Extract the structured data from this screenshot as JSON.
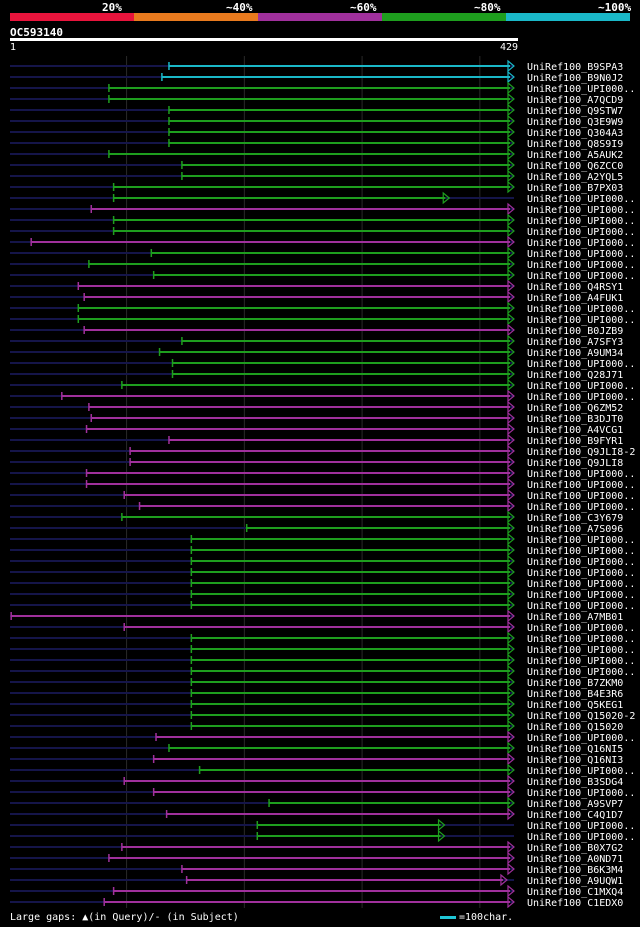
{
  "legend": {
    "labels": [
      "20%",
      "~40%",
      "~60%",
      "~80%",
      "~100%"
    ],
    "colors": [
      "#e8143c",
      "#e87a1e",
      "#a0309c",
      "#1e9e1e",
      "#1ab8c8"
    ]
  },
  "query": {
    "id": "OC593140",
    "start_label": "1",
    "end_label": "429"
  },
  "chart_data": {
    "type": "alignment",
    "query_length": 429,
    "x_range": [
      1,
      429
    ],
    "grid": true,
    "colors": {
      "~100%": "#1ab8c8",
      "~80%": "#1e9e1e",
      "~60%": "#a0309c",
      "unaligned": "#15154a"
    },
    "hits": [
      {
        "label": "UniRef100_B9SPA3",
        "start": 136,
        "end": 429,
        "identity": "~100%",
        "arrow": true
      },
      {
        "label": "UniRef100_B9N0J2",
        "start": 130,
        "end": 429,
        "identity": "~100%",
        "arrow": true
      },
      {
        "label": "UniRef100_UPI000..",
        "start": 85,
        "end": 429,
        "identity": "~80%",
        "arrow": true
      },
      {
        "label": "UniRef100_A7QCD9",
        "start": 85,
        "end": 429,
        "identity": "~80%",
        "arrow": true
      },
      {
        "label": "UniRef100_Q9STW7",
        "start": 136,
        "end": 429,
        "identity": "~80%",
        "arrow": true
      },
      {
        "label": "UniRef100_Q3E9W9",
        "start": 136,
        "end": 429,
        "identity": "~80%",
        "arrow": true
      },
      {
        "label": "UniRef100_Q304A3",
        "start": 136,
        "end": 429,
        "identity": "~80%",
        "arrow": true
      },
      {
        "label": "UniRef100_Q8S9I9",
        "start": 136,
        "end": 429,
        "identity": "~80%",
        "arrow": true
      },
      {
        "label": "UniRef100_A5AUK2",
        "start": 85,
        "end": 429,
        "identity": "~80%",
        "arrow": true
      },
      {
        "label": "UniRef100_Q6ZCC0",
        "start": 147,
        "end": 429,
        "identity": "~80%",
        "arrow": true
      },
      {
        "label": "UniRef100_A2YQL5",
        "start": 147,
        "end": 429,
        "identity": "~80%",
        "arrow": true
      },
      {
        "label": "UniRef100_B7PX03",
        "start": 89,
        "end": 429,
        "identity": "~80%",
        "arrow": true
      },
      {
        "label": "UniRef100_UPI000..",
        "start": 89,
        "end": 374,
        "identity": "~80%",
        "arrow": true
      },
      {
        "label": "UniRef100_UPI000..",
        "start": 70,
        "end": 429,
        "identity": "~60%",
        "arrow": true
      },
      {
        "label": "UniRef100_UPI000..",
        "start": 89,
        "end": 429,
        "identity": "~80%",
        "arrow": true
      },
      {
        "label": "UniRef100_UPI000..",
        "start": 89,
        "end": 429,
        "identity": "~80%",
        "arrow": true
      },
      {
        "label": "UniRef100_UPI000..",
        "start": 19,
        "end": 429,
        "identity": "~60%",
        "arrow": true
      },
      {
        "label": "UniRef100_UPI000..",
        "start": 121,
        "end": 429,
        "identity": "~80%",
        "arrow": true
      },
      {
        "label": "UniRef100_UPI000..",
        "start": 68,
        "end": 429,
        "identity": "~80%",
        "arrow": true
      },
      {
        "label": "UniRef100_UPI000..",
        "start": 123,
        "end": 429,
        "identity": "~80%",
        "arrow": true
      },
      {
        "label": "UniRef100_Q4RSY1",
        "start": 59,
        "end": 429,
        "identity": "~60%",
        "arrow": true
      },
      {
        "label": "UniRef100_A4FUK1",
        "start": 64,
        "end": 429,
        "identity": "~60%",
        "arrow": true
      },
      {
        "label": "UniRef100_UPI000..",
        "start": 59,
        "end": 429,
        "identity": "~80%",
        "arrow": true
      },
      {
        "label": "UniRef100_UPI000..",
        "start": 59,
        "end": 429,
        "identity": "~80%",
        "arrow": true
      },
      {
        "label": "UniRef100_B0JZB9",
        "start": 64,
        "end": 429,
        "identity": "~60%",
        "arrow": true
      },
      {
        "label": "UniRef100_A7SFY3",
        "start": 147,
        "end": 429,
        "identity": "~80%",
        "arrow": true
      },
      {
        "label": "UniRef100_A9UM34",
        "start": 128,
        "end": 429,
        "identity": "~80%",
        "arrow": true
      },
      {
        "label": "UniRef100_UPI000..",
        "start": 139,
        "end": 429,
        "identity": "~80%",
        "arrow": true
      },
      {
        "label": "UniRef100_Q28J71",
        "start": 139,
        "end": 429,
        "identity": "~80%",
        "arrow": true
      },
      {
        "label": "UniRef100_UPI000..",
        "start": 96,
        "end": 429,
        "identity": "~80%",
        "arrow": true
      },
      {
        "label": "UniRef100_UPI000..",
        "start": 45,
        "end": 429,
        "identity": "~60%",
        "arrow": true
      },
      {
        "label": "UniRef100_Q6ZM52",
        "start": 68,
        "end": 429,
        "identity": "~60%",
        "arrow": true
      },
      {
        "label": "UniRef100_B3DJT0",
        "start": 70,
        "end": 429,
        "identity": "~60%",
        "arrow": true
      },
      {
        "label": "UniRef100_A4VCG1",
        "start": 66,
        "end": 429,
        "identity": "~60%",
        "arrow": true
      },
      {
        "label": "UniRef100_B9FYR1",
        "start": 136,
        "end": 429,
        "identity": "~60%",
        "arrow": true
      },
      {
        "label": "UniRef100_Q9JLI8-2",
        "start": 103,
        "end": 429,
        "identity": "~60%",
        "arrow": true
      },
      {
        "label": "UniRef100_Q9JLI8",
        "start": 103,
        "end": 429,
        "identity": "~60%",
        "arrow": true
      },
      {
        "label": "UniRef100_UPI000..",
        "start": 66,
        "end": 429,
        "identity": "~60%",
        "arrow": true
      },
      {
        "label": "UniRef100_UPI000..",
        "start": 66,
        "end": 429,
        "identity": "~60%",
        "arrow": true
      },
      {
        "label": "UniRef100_UPI000..",
        "start": 98,
        "end": 429,
        "identity": "~60%",
        "arrow": true
      },
      {
        "label": "UniRef100_UPI000..",
        "start": 111,
        "end": 429,
        "identity": "~60%",
        "arrow": true
      },
      {
        "label": "UniRef100_C3Y679",
        "start": 96,
        "end": 429,
        "identity": "~80%",
        "arrow": true
      },
      {
        "label": "UniRef100_A7S096",
        "start": 202,
        "end": 429,
        "identity": "~80%",
        "arrow": true
      },
      {
        "label": "UniRef100_UPI000..",
        "start": 155,
        "end": 429,
        "identity": "~80%",
        "arrow": true
      },
      {
        "label": "UniRef100_UPI000..",
        "start": 155,
        "end": 429,
        "identity": "~80%",
        "arrow": true
      },
      {
        "label": "UniRef100_UPI000..",
        "start": 155,
        "end": 429,
        "identity": "~80%",
        "arrow": true
      },
      {
        "label": "UniRef100_UPI000..",
        "start": 155,
        "end": 429,
        "identity": "~80%",
        "arrow": true
      },
      {
        "label": "UniRef100_UPI000..",
        "start": 155,
        "end": 429,
        "identity": "~80%",
        "arrow": true
      },
      {
        "label": "UniRef100_UPI000..",
        "start": 155,
        "end": 429,
        "identity": "~80%",
        "arrow": true
      },
      {
        "label": "UniRef100_UPI000..",
        "start": 155,
        "end": 429,
        "identity": "~80%",
        "arrow": true
      },
      {
        "label": "UniRef100_A7MB01",
        "start": 2,
        "end": 429,
        "identity": "~60%",
        "arrow": true
      },
      {
        "label": "UniRef100_UPI000..",
        "start": 98,
        "end": 429,
        "identity": "~60%",
        "arrow": true
      },
      {
        "label": "UniRef100_UPI000..",
        "start": 155,
        "end": 429,
        "identity": "~80%",
        "arrow": true
      },
      {
        "label": "UniRef100_UPI000..",
        "start": 155,
        "end": 429,
        "identity": "~80%",
        "arrow": true
      },
      {
        "label": "UniRef100_UPI000..",
        "start": 155,
        "end": 429,
        "identity": "~80%",
        "arrow": true
      },
      {
        "label": "UniRef100_UPI000..",
        "start": 155,
        "end": 429,
        "identity": "~80%",
        "arrow": true
      },
      {
        "label": "UniRef100_B7ZKM0",
        "start": 155,
        "end": 429,
        "identity": "~80%",
        "arrow": true
      },
      {
        "label": "UniRef100_B4E3R6",
        "start": 155,
        "end": 429,
        "identity": "~80%",
        "arrow": true
      },
      {
        "label": "UniRef100_Q5KEG1",
        "start": 155,
        "end": 429,
        "identity": "~80%",
        "arrow": true
      },
      {
        "label": "UniRef100_Q15020-2",
        "start": 155,
        "end": 429,
        "identity": "~80%",
        "arrow": true
      },
      {
        "label": "UniRef100_Q15020",
        "start": 155,
        "end": 429,
        "identity": "~80%",
        "arrow": true
      },
      {
        "label": "UniRef100_UPI000..",
        "start": 125,
        "end": 429,
        "identity": "~60%",
        "arrow": true
      },
      {
        "label": "UniRef100_Q16NI5",
        "start": 136,
        "end": 429,
        "identity": "~80%",
        "arrow": true
      },
      {
        "label": "UniRef100_Q16NI3",
        "start": 123,
        "end": 429,
        "identity": "~60%",
        "arrow": true
      },
      {
        "label": "UniRef100_UPI000..",
        "start": 162,
        "end": 429,
        "identity": "~80%",
        "arrow": true
      },
      {
        "label": "UniRef100_B3SDG4",
        "start": 98,
        "end": 429,
        "identity": "~60%",
        "arrow": true
      },
      {
        "label": "UniRef100_UPI000..",
        "start": 123,
        "end": 429,
        "identity": "~60%",
        "arrow": true
      },
      {
        "label": "UniRef100_A9SVP7",
        "start": 221,
        "end": 429,
        "identity": "~80%",
        "arrow": true
      },
      {
        "label": "UniRef100_C4Q1D7",
        "start": 134,
        "end": 429,
        "identity": "~60%",
        "arrow": true
      },
      {
        "label": "UniRef100_UPI000..",
        "start": 211,
        "end": 370,
        "identity": "~80%",
        "arrow": true
      },
      {
        "label": "UniRef100_UPI000..",
        "start": 211,
        "end": 370,
        "identity": "~80%",
        "arrow": true
      },
      {
        "label": "UniRef100_B0X7G2",
        "start": 96,
        "end": 429,
        "identity": "~60%",
        "arrow": true
      },
      {
        "label": "UniRef100_A0ND71",
        "start": 85,
        "end": 429,
        "identity": "~60%",
        "arrow": true
      },
      {
        "label": "UniRef100_B6K3M4",
        "start": 147,
        "end": 429,
        "identity": "~60%",
        "arrow": true
      },
      {
        "label": "UniRef100_A9UQW1",
        "start": 151,
        "end": 423,
        "identity": "~60%",
        "arrow": true
      },
      {
        "label": "UniRef100_C1MXQ4",
        "start": 89,
        "end": 429,
        "identity": "~60%",
        "arrow": true
      },
      {
        "label": "UniRef100_C1EDX0",
        "start": 81,
        "end": 429,
        "identity": "~60%",
        "arrow": true
      }
    ]
  },
  "footer": {
    "gaps_text": "Large gaps: ▲(in Query)/- (in Subject)",
    "scale_text": "=100char."
  }
}
